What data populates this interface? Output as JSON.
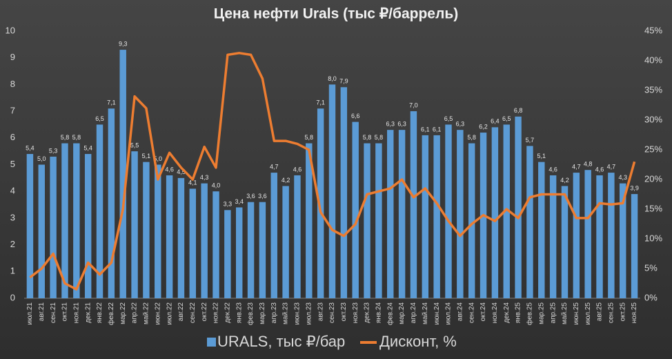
{
  "chart_data": {
    "type": "bar_line",
    "title": "Цена нефти Urals (тыс ₽/баррель)",
    "categories": [
      "июл.21",
      "авг.21",
      "сен.21",
      "окт.21",
      "ноя.21",
      "дек.21",
      "янв.22",
      "фев.22",
      "мар.22",
      "апр.22",
      "май.22",
      "июн.22",
      "июл.22",
      "авг.22",
      "сен.22",
      "окт.22",
      "ноя.22",
      "дек.22",
      "янв.23",
      "фев.23",
      "мар.23",
      "апр.23",
      "май.23",
      "июн.23",
      "июл.23",
      "авг.23",
      "сен.23",
      "окт.23",
      "ноя.23",
      "дек.23",
      "янв.24",
      "фев.24",
      "мар.24",
      "апр.24",
      "май.24",
      "июн.24",
      "июл.24",
      "авг.24",
      "сен.24",
      "окт.24",
      "ноя.24",
      "дек.24",
      "янв.25",
      "фев.25",
      "мар.25",
      "апр.25",
      "май.25",
      "июн.25",
      "июл.25",
      "авг.25",
      "сен.25",
      "окт.25",
      "ноя.25"
    ],
    "series": [
      {
        "name": "URALS, тыс ₽/бар",
        "color": "#5b9bd5",
        "kind": "bar",
        "values": [
          5.4,
          5.0,
          5.3,
          5.8,
          5.8,
          5.4,
          6.5,
          7.1,
          9.3,
          5.5,
          5.1,
          5.0,
          4.6,
          4.5,
          4.1,
          4.3,
          4.0,
          3.3,
          3.4,
          3.6,
          3.6,
          4.7,
          4.2,
          4.6,
          5.8,
          7.1,
          8.0,
          7.9,
          6.6,
          5.8,
          5.8,
          6.3,
          6.3,
          7.0,
          6.1,
          6.1,
          6.5,
          6.3,
          5.8,
          6.2,
          6.4,
          6.5,
          6.8,
          5.7,
          5.1,
          4.6,
          4.2,
          4.7,
          4.8,
          4.6,
          4.7,
          4.3,
          3.9
        ],
        "value_labels": [
          "5,4",
          "5,0",
          "5,3",
          "5,8",
          "5,8",
          "5,4",
          "6,5",
          "7,1",
          "9,3",
          "5,5",
          "5,1",
          "5,0",
          "4,6",
          "4,5",
          "4,1",
          "4,3",
          "4,0",
          "3,3",
          "3,4",
          "3,6",
          "3,6",
          "4,7",
          "4,2",
          "4,6",
          "5,8",
          "7,1",
          "8,0",
          "7,9",
          "6,6",
          "5,8",
          "5,8",
          "6,3",
          "6,3",
          "7,0",
          "6,1",
          "6,1",
          "6,5",
          "6,3",
          "5,8",
          "6,2",
          "6,4",
          "6,5",
          "6,8",
          "5,7",
          "5,1",
          "4,6",
          "4,2",
          "4,7",
          "4,8",
          "4,6",
          "4,7",
          "4,3",
          "3,9"
        ]
      },
      {
        "name": "Дисконт, %",
        "color": "#ed7d31",
        "kind": "line",
        "axis": "y2",
        "values": [
          3.5,
          5,
          7.5,
          2.5,
          1.5,
          6,
          4,
          6,
          15,
          34,
          32,
          20,
          24.5,
          22,
          20,
          25.5,
          22,
          41,
          41.3,
          41,
          37,
          26.5,
          26.5,
          26,
          25,
          14.5,
          11.5,
          10.5,
          12.5,
          17.5,
          18,
          18.5,
          20,
          17,
          18.5,
          16,
          13,
          10.5,
          12.5,
          14,
          13,
          15,
          13.5,
          17,
          17.5,
          17.5,
          17.5,
          13.5,
          13.5,
          16,
          15.8,
          16,
          23
        ]
      }
    ],
    "ylim": [
      0,
      10
    ],
    "yticks": [
      0,
      1,
      2,
      3,
      4,
      5,
      6,
      7,
      8,
      9,
      10
    ],
    "y2lim": [
      0,
      45
    ],
    "y2ticks": [
      {
        "value": 0,
        "label": "0%"
      },
      {
        "value": 5,
        "label": "5%"
      },
      {
        "value": 10,
        "label": "10%"
      },
      {
        "value": 15,
        "label": "15%"
      },
      {
        "value": 20,
        "label": "20%"
      },
      {
        "value": 25,
        "label": "25%"
      },
      {
        "value": 30,
        "label": "30%"
      },
      {
        "value": 35,
        "label": "35%"
      },
      {
        "value": 40,
        "label": "40%"
      },
      {
        "value": 45,
        "label": "45%"
      }
    ],
    "legend": "bottom"
  }
}
